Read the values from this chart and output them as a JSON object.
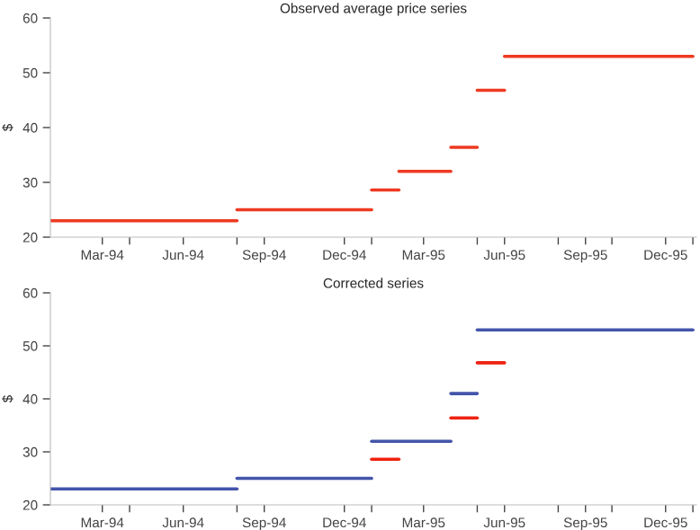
{
  "chart_data": [
    {
      "type": "line",
      "title": "Observed average price series",
      "ylabel": "$",
      "series": [
        {
          "color": "#ee3a22",
          "x": [
            "1994-01-01",
            "1994-08-01"
          ],
          "values": [
            23,
            23
          ]
        },
        {
          "color": "#ee3a22",
          "x": [
            "1994-08-01",
            "1995-01-01"
          ],
          "values": [
            25,
            25
          ]
        },
        {
          "color": "#ee3a22",
          "x": [
            "1995-01-01",
            "1995-02-01"
          ],
          "values": [
            28.6,
            28.6
          ]
        },
        {
          "color": "#ee3a22",
          "x": [
            "1995-02-01",
            "1995-04-01"
          ],
          "values": [
            32,
            32
          ]
        },
        {
          "color": "#ee3a22",
          "x": [
            "1995-04-01",
            "1995-05-01"
          ],
          "values": [
            36.4,
            36.4
          ]
        },
        {
          "color": "#ee3a22",
          "x": [
            "1995-05-01",
            "1995-06-01"
          ],
          "values": [
            46.8,
            46.8
          ]
        },
        {
          "color": "#ee3a22",
          "x": [
            "1995-06-01",
            "1996-01-01"
          ],
          "values": [
            53,
            53
          ]
        }
      ],
      "xlim": [
        "1994-01-01",
        "1996-01-05"
      ],
      "xticks": [
        {
          "value": "1994-03-01",
          "label": "Mar-94"
        },
        {
          "value": "1994-04-01",
          "label": null
        },
        {
          "value": "1994-06-01",
          "label": "Jun-94"
        },
        {
          "value": "1994-08-01",
          "label": null
        },
        {
          "value": "1994-09-01",
          "label": "Sep-94"
        },
        {
          "value": "1994-12-01",
          "label": "Dec-94"
        },
        {
          "value": "1995-01-01",
          "label": null
        },
        {
          "value": "1995-03-01",
          "label": "Mar-95"
        },
        {
          "value": "1995-05-01",
          "label": null
        },
        {
          "value": "1995-06-01",
          "label": "Jun-95"
        },
        {
          "value": "1995-08-01",
          "label": null
        },
        {
          "value": "1995-09-01",
          "label": "Sep-95"
        },
        {
          "value": "1995-10-01",
          "label": null
        },
        {
          "value": "1995-12-01",
          "label": "Dec-95"
        },
        {
          "value": "1996-01-01",
          "label": null
        }
      ],
      "ylim": [
        20,
        60
      ],
      "yticks": [
        20,
        30,
        40,
        50,
        60
      ],
      "grid": false,
      "line_style": "solid",
      "marker": "none"
    },
    {
      "type": "line",
      "title": "Corrected series",
      "ylabel": "$",
      "series": [
        {
          "color": "#4455aa",
          "x": [
            "1994-01-01",
            "1994-08-01"
          ],
          "values": [
            23,
            23
          ]
        },
        {
          "color": "#4455aa",
          "x": [
            "1994-08-01",
            "1995-01-01"
          ],
          "values": [
            25,
            25
          ]
        },
        {
          "color": "#4455aa",
          "x": [
            "1995-01-01",
            "1995-04-01"
          ],
          "values": [
            32,
            32
          ]
        },
        {
          "color": "#4455aa",
          "x": [
            "1995-04-01",
            "1995-05-01"
          ],
          "values": [
            41,
            41
          ]
        },
        {
          "color": "#4455aa",
          "x": [
            "1995-05-01",
            "1996-01-01"
          ],
          "values": [
            53,
            53
          ]
        },
        {
          "color": "#ee2211",
          "x": [
            "1995-01-01",
            "1995-02-01"
          ],
          "values": [
            28.6,
            28.6
          ]
        },
        {
          "color": "#ee2211",
          "x": [
            "1995-04-01",
            "1995-05-01"
          ],
          "values": [
            36.4,
            36.4
          ]
        },
        {
          "color": "#ee2211",
          "x": [
            "1995-05-01",
            "1995-06-01"
          ],
          "values": [
            46.8,
            46.8
          ]
        }
      ],
      "xlim": [
        "1994-01-01",
        "1996-01-05"
      ],
      "xticks": [
        {
          "value": "1994-03-01",
          "label": "Mar-94"
        },
        {
          "value": "1994-04-01",
          "label": null
        },
        {
          "value": "1994-06-01",
          "label": "Jun-94"
        },
        {
          "value": "1994-08-01",
          "label": null
        },
        {
          "value": "1994-09-01",
          "label": "Sep-94"
        },
        {
          "value": "1994-12-01",
          "label": "Dec-94"
        },
        {
          "value": "1995-01-01",
          "label": null
        },
        {
          "value": "1995-03-01",
          "label": "Mar-95"
        },
        {
          "value": "1995-05-01",
          "label": null
        },
        {
          "value": "1995-06-01",
          "label": "Jun-95"
        },
        {
          "value": "1995-08-01",
          "label": null
        },
        {
          "value": "1995-09-01",
          "label": "Sep-95"
        },
        {
          "value": "1995-10-01",
          "label": null
        },
        {
          "value": "1995-12-01",
          "label": "Dec-95"
        },
        {
          "value": "1996-01-01",
          "label": null
        }
      ],
      "ylim": [
        20,
        60
      ],
      "yticks": [
        20,
        30,
        40,
        50,
        60
      ],
      "grid": false,
      "line_style": "solid",
      "marker": "none"
    }
  ]
}
